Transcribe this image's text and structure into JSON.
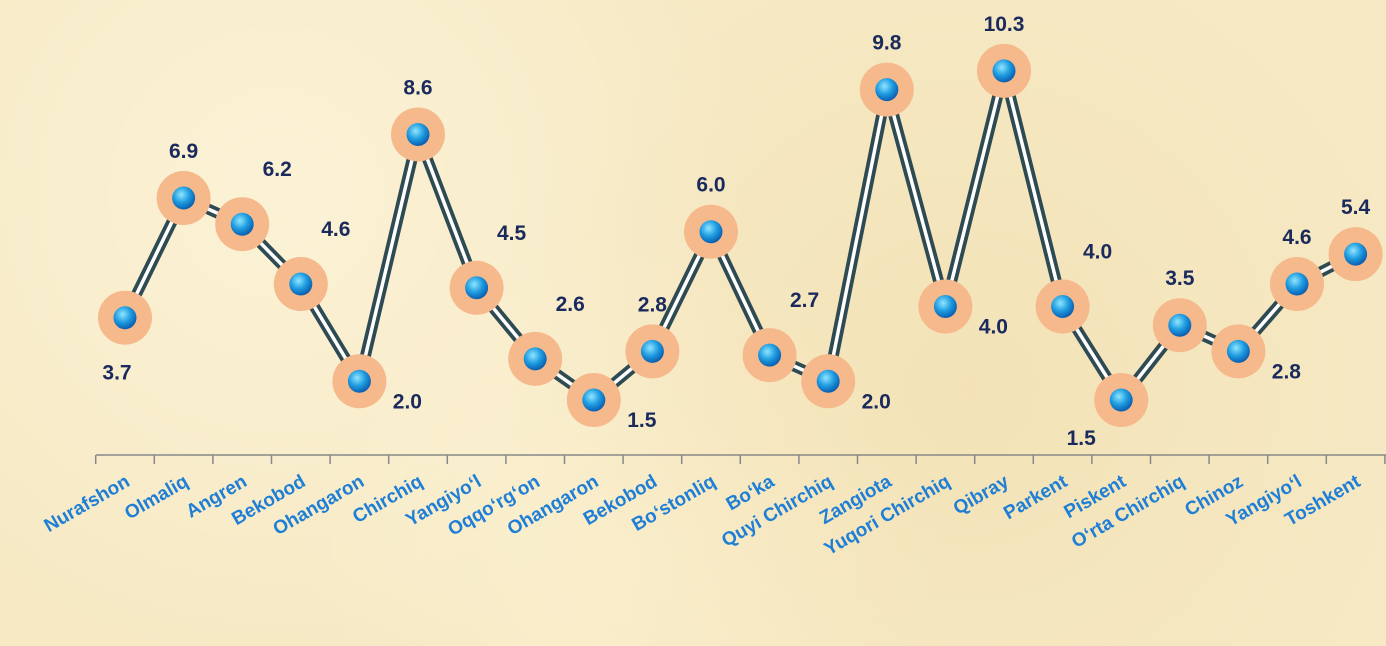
{
  "chart_data": {
    "type": "line",
    "categories": [
      "Nurafshon",
      "Olmaliq",
      "Angren",
      "Bekobod",
      "Ohangaron",
      "Chirchiq",
      "Yangiyo‘l",
      "Oqqo‘rg‘on",
      "Ohangaron",
      "Bekobod",
      "Bo‘stonliq",
      "Bo‘ka",
      "Quyi Chirchiq",
      "Zangiota",
      "Yuqori Chirchiq",
      "Qibray",
      "Parkent",
      "Piskent",
      "O‘rta Chirchiq",
      "Chinoz",
      "Yangiyo‘l",
      "Toshkent"
    ],
    "values": [
      3.7,
      6.9,
      6.2,
      4.6,
      2.0,
      8.6,
      4.5,
      2.6,
      1.5,
      2.8,
      6.0,
      2.7,
      2.0,
      9.8,
      4.0,
      10.3,
      4.0,
      1.5,
      3.5,
      2.8,
      4.6,
      5.4
    ],
    "value_labels": [
      "3.7",
      "6.9",
      "6.2",
      "4.6",
      "2.0",
      "8.6",
      "4.5",
      "2.6",
      "1.5",
      "2.8",
      "6.0",
      "2.7",
      "2.0",
      "9.8",
      "4.0",
      "10.3",
      "4.0",
      "1.5",
      "3.5",
      "2.8",
      "4.6",
      "5.4"
    ],
    "title": "",
    "xlabel": "",
    "ylabel": "",
    "grid": false,
    "legend": "none",
    "colors": {
      "line_dark": "#2e4a52",
      "line_light": "#ffffff",
      "marker_ring": "#f5b98c",
      "marker_center": "#1e9be0",
      "value_text": "#1a2a5c",
      "category_text": "#1f7fd6",
      "axis": "#888888"
    }
  }
}
